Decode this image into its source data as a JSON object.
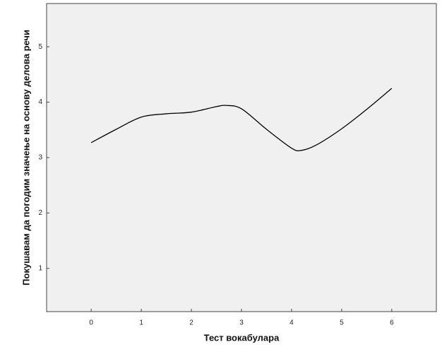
{
  "chart_data": {
    "type": "line",
    "x_label": "Тест вокабулара",
    "y_label": "Покушавам да погодим значење на основу делова речи",
    "x": [
      0,
      0.5,
      1,
      1.5,
      2,
      2.5,
      2.7,
      3,
      3.5,
      4,
      4.2,
      4.5,
      5,
      5.5,
      6
    ],
    "series": [
      {
        "color": "#000000",
        "values": [
          3.27,
          3.51,
          3.73,
          3.79,
          3.82,
          3.92,
          3.94,
          3.88,
          3.51,
          3.17,
          3.13,
          3.23,
          3.52,
          3.87,
          4.25
        ]
      }
    ],
    "xlim": [
      -0.89,
      6.89
    ],
    "xticks": [
      0,
      1,
      2,
      3,
      4,
      5,
      6
    ],
    "ylim": [
      0.22,
      5.78
    ],
    "yticks": [
      1,
      2,
      3,
      4,
      5
    ],
    "background": "#f0f0f0"
  }
}
